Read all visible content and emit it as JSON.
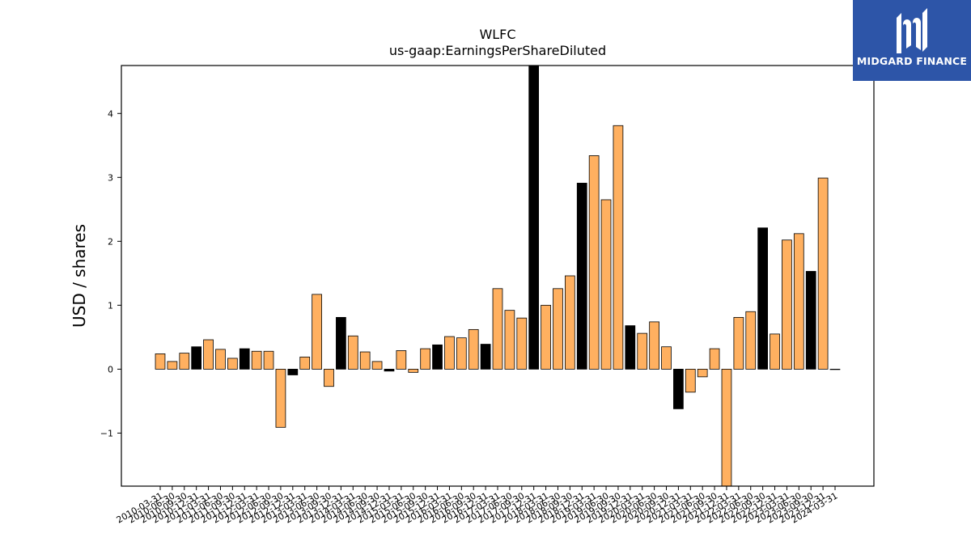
{
  "brand": {
    "name": "MIDGARD FINANCE",
    "background": "#2d55a8"
  },
  "chart_data": {
    "type": "bar",
    "title": "WLFC",
    "subtitle": "us-gaap:EarningsPerShareDiluted",
    "ylabel": "USD / shares",
    "xlabel": "",
    "ylim": [
      -1.83,
      4.75
    ],
    "yticks": [
      -1,
      0,
      1,
      2,
      3,
      4
    ],
    "grid": false,
    "colors": {
      "orange": "#ffb060",
      "black": "#000000"
    },
    "categories": [
      "2010-03-31",
      "2010-06-30",
      "2010-09-30",
      "2010-12-31",
      "2011-03-31",
      "2011-06-30",
      "2011-09-30",
      "2011-12-31",
      "2012-03-31",
      "2012-06-30",
      "2012-09-30",
      "2012-12-31",
      "2013-03-31",
      "2013-06-30",
      "2013-09-30",
      "2013-12-31",
      "2014-03-31",
      "2014-06-30",
      "2014-09-30",
      "2014-12-31",
      "2015-03-31",
      "2015-06-30",
      "2015-09-30",
      "2015-12-31",
      "2016-03-31",
      "2016-06-30",
      "2016-09-30",
      "2016-12-31",
      "2017-03-31",
      "2017-06-30",
      "2017-09-30",
      "2017-12-31",
      "2018-03-31",
      "2018-06-30",
      "2018-09-30",
      "2018-12-31",
      "2019-03-31",
      "2019-06-30",
      "2019-09-30",
      "2019-12-31",
      "2020-03-31",
      "2020-06-30",
      "2020-09-30",
      "2020-12-31",
      "2021-03-31",
      "2021-06-30",
      "2021-09-30",
      "2021-12-31",
      "2022-03-31",
      "2022-06-30",
      "2022-09-30",
      "2022-12-31",
      "2023-03-31",
      "2023-06-30",
      "2023-09-30",
      "2023-12-31",
      "2024-03-31"
    ],
    "values": [
      0.24,
      0.12,
      0.25,
      0.35,
      0.46,
      0.31,
      0.17,
      0.32,
      0.28,
      0.28,
      -0.91,
      -0.09,
      0.19,
      1.17,
      -0.27,
      0.81,
      0.52,
      0.27,
      0.12,
      -0.03,
      0.29,
      -0.05,
      0.32,
      0.38,
      0.51,
      0.49,
      0.62,
      0.39,
      1.26,
      0.92,
      0.8,
      4.75,
      1.0,
      1.26,
      1.46,
      2.91,
      3.34,
      2.65,
      3.81,
      0.68,
      0.56,
      0.74,
      0.35,
      -0.62,
      -0.36,
      -0.12,
      0.32,
      -1.83,
      0.81,
      0.9,
      2.21,
      0.55,
      2.02,
      2.12,
      1.53,
      2.99,
      0
    ],
    "bar_colors": [
      "orange",
      "orange",
      "orange",
      "black",
      "orange",
      "orange",
      "orange",
      "black",
      "orange",
      "orange",
      "orange",
      "black",
      "orange",
      "orange",
      "orange",
      "black",
      "orange",
      "orange",
      "orange",
      "black",
      "orange",
      "orange",
      "orange",
      "black",
      "orange",
      "orange",
      "orange",
      "black",
      "orange",
      "orange",
      "orange",
      "black",
      "orange",
      "orange",
      "orange",
      "black",
      "orange",
      "orange",
      "orange",
      "black",
      "orange",
      "orange",
      "orange",
      "black",
      "orange",
      "orange",
      "orange",
      "orange",
      "orange",
      "orange",
      "black",
      "orange",
      "orange",
      "orange",
      "black",
      "orange",
      "orange"
    ]
  }
}
